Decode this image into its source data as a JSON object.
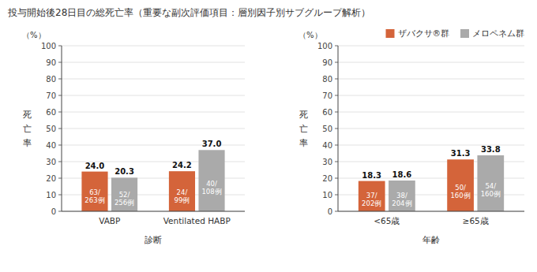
{
  "chart_data": [
    {
      "type": "bar",
      "title": "投与開始後28日目の総死亡率（重要な副次評価項目：層別因子別サブグループ解析）",
      "categories": [
        "VABP",
        "Ventilated HABP"
      ],
      "xlabel": "診断",
      "ylabel": "死\n亡\n率",
      "annotations": [
        "（%）"
      ],
      "ylim": [
        0,
        100
      ],
      "yticks": [
        0,
        10,
        20,
        30,
        40,
        50,
        60,
        70,
        80,
        90,
        100
      ],
      "grid": true,
      "data_labels": true,
      "series": [
        {
          "name": "ザバクサ®群",
          "color": "#d4643a",
          "values": [
            24.0,
            24.2
          ],
          "value_labels": [
            "24.0",
            "24.2"
          ],
          "fractions": [
            "63/\n263例",
            "24/\n99例"
          ]
        },
        {
          "name": "メロペネム群",
          "color": "#aaaaaa",
          "values": [
            20.3,
            37.0
          ],
          "value_labels": [
            "20.3",
            "37.0"
          ],
          "fractions": [
            "52/\n256例",
            "40/\n108例"
          ]
        }
      ]
    },
    {
      "type": "bar",
      "categories": [
        "<65歳",
        "≥65歳"
      ],
      "xlabel": "年齢",
      "ylabel": "死\n亡\n率",
      "annotations": [
        "（%）"
      ],
      "ylim": [
        0,
        100
      ],
      "yticks": [
        0,
        10,
        20,
        30,
        40,
        50,
        60,
        70,
        80,
        90,
        100
      ],
      "grid": true,
      "data_labels": true,
      "legend": "upper right",
      "series": [
        {
          "name": "ザバクサ®群",
          "color": "#d4643a",
          "values": [
            18.3,
            31.3
          ],
          "value_labels": [
            "18.3",
            "31.3"
          ],
          "fractions": [
            "37/\n202例",
            "50/\n160例"
          ]
        },
        {
          "name": "メロペネム群",
          "color": "#aaaaaa",
          "values": [
            18.6,
            33.8
          ],
          "value_labels": [
            "18.6",
            "33.8"
          ],
          "fractions": [
            "38/\n204例",
            "54/\n160例"
          ]
        }
      ]
    }
  ]
}
